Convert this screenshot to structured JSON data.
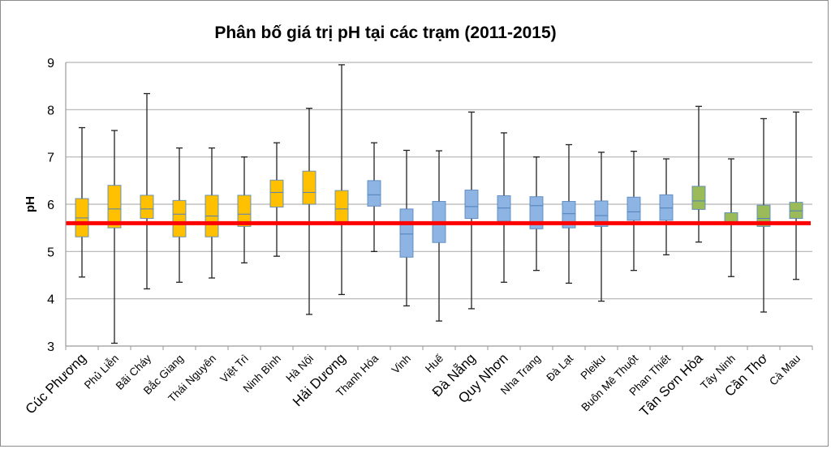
{
  "chart_data": {
    "type": "boxplot",
    "title": "Phân bố giá trị pH tại các trạm (2011-2015)",
    "ylabel": "pH",
    "xlabel": "",
    "ylim": [
      3,
      9
    ],
    "yticks": [
      "3",
      "4",
      "5",
      "6",
      "7",
      "8",
      "9"
    ],
    "grid": true,
    "legend": "none",
    "reference_line": {
      "value": 5.6,
      "color": "#FF0000"
    },
    "group_colors": {
      "north": "#FFC000",
      "central": "#8DB4E2",
      "south": "#9BBB59"
    },
    "stations": [
      {
        "name": "Cúc Phương",
        "group": "north",
        "min": 4.46,
        "q1": 5.31,
        "median": 5.71,
        "q3": 6.12,
        "max": 7.62
      },
      {
        "name": "Phủ Liễn",
        "group": "north",
        "min": 3.06,
        "q1": 5.5,
        "median": 5.9,
        "q3": 6.4,
        "max": 7.56
      },
      {
        "name": "Bãi Cháy",
        "group": "north",
        "min": 4.21,
        "q1": 5.7,
        "median": 5.9,
        "q3": 6.19,
        "max": 8.34
      },
      {
        "name": "Bắc Giang",
        "group": "north",
        "min": 4.35,
        "q1": 5.31,
        "median": 5.79,
        "q3": 6.08,
        "max": 7.19
      },
      {
        "name": "Thái Nguyên",
        "group": "north",
        "min": 4.44,
        "q1": 5.31,
        "median": 5.75,
        "q3": 6.19,
        "max": 7.19
      },
      {
        "name": "Việt Trì",
        "group": "north",
        "min": 4.76,
        "q1": 5.53,
        "median": 5.79,
        "q3": 6.19,
        "max": 7.0
      },
      {
        "name": "Ninh Bình",
        "group": "north",
        "min": 4.9,
        "q1": 5.94,
        "median": 6.25,
        "q3": 6.51,
        "max": 7.3
      },
      {
        "name": "Hà Nội",
        "group": "north",
        "min": 3.67,
        "q1": 6.0,
        "median": 6.25,
        "q3": 6.7,
        "max": 8.03
      },
      {
        "name": "Hải Dương",
        "group": "north",
        "min": 4.09,
        "q1": 5.62,
        "median": 5.9,
        "q3": 6.29,
        "max": 8.95
      },
      {
        "name": "Thanh Hóa",
        "group": "central",
        "min": 5.0,
        "q1": 5.96,
        "median": 6.2,
        "q3": 6.5,
        "max": 7.3
      },
      {
        "name": "Vinh",
        "group": "central",
        "min": 3.85,
        "q1": 4.88,
        "median": 5.37,
        "q3": 5.9,
        "max": 7.14
      },
      {
        "name": "Huế",
        "group": "central",
        "min": 3.53,
        "q1": 5.19,
        "median": 5.63,
        "q3": 6.06,
        "max": 7.13
      },
      {
        "name": "Đà Nẵng",
        "group": "central",
        "min": 3.79,
        "q1": 5.7,
        "median": 5.95,
        "q3": 6.3,
        "max": 7.95
      },
      {
        "name": "Quy Nhơn",
        "group": "central",
        "min": 4.35,
        "q1": 5.64,
        "median": 5.92,
        "q3": 6.18,
        "max": 7.51
      },
      {
        "name": "Nha Trang",
        "group": "central",
        "min": 4.6,
        "q1": 5.48,
        "median": 5.97,
        "q3": 6.16,
        "max": 7.0
      },
      {
        "name": "Đà Lạt",
        "group": "central",
        "min": 4.33,
        "q1": 5.5,
        "median": 5.8,
        "q3": 6.06,
        "max": 7.26
      },
      {
        "name": "Pleiku",
        "group": "central",
        "min": 3.95,
        "q1": 5.53,
        "median": 5.76,
        "q3": 6.07,
        "max": 7.1
      },
      {
        "name": "Buôn Mê Thuột",
        "group": "central",
        "min": 4.6,
        "q1": 5.66,
        "median": 5.84,
        "q3": 6.15,
        "max": 7.12
      },
      {
        "name": "Phan Thiết",
        "group": "central",
        "min": 4.93,
        "q1": 5.66,
        "median": 5.92,
        "q3": 6.2,
        "max": 6.96
      },
      {
        "name": "Tân Sơn Hòa",
        "group": "south",
        "min": 5.2,
        "q1": 5.89,
        "median": 6.07,
        "q3": 6.38,
        "max": 8.07
      },
      {
        "name": "Tây Ninh",
        "group": "south",
        "min": 4.47,
        "q1": 5.62,
        "median": 5.62,
        "q3": 5.82,
        "max": 6.96
      },
      {
        "name": "Cần Thơ",
        "group": "south",
        "min": 3.72,
        "q1": 5.53,
        "median": 5.7,
        "q3": 5.98,
        "max": 7.81
      },
      {
        "name": "Cà Mau",
        "group": "south",
        "min": 4.41,
        "q1": 5.7,
        "median": 5.86,
        "q3": 6.04,
        "max": 7.95
      }
    ]
  }
}
